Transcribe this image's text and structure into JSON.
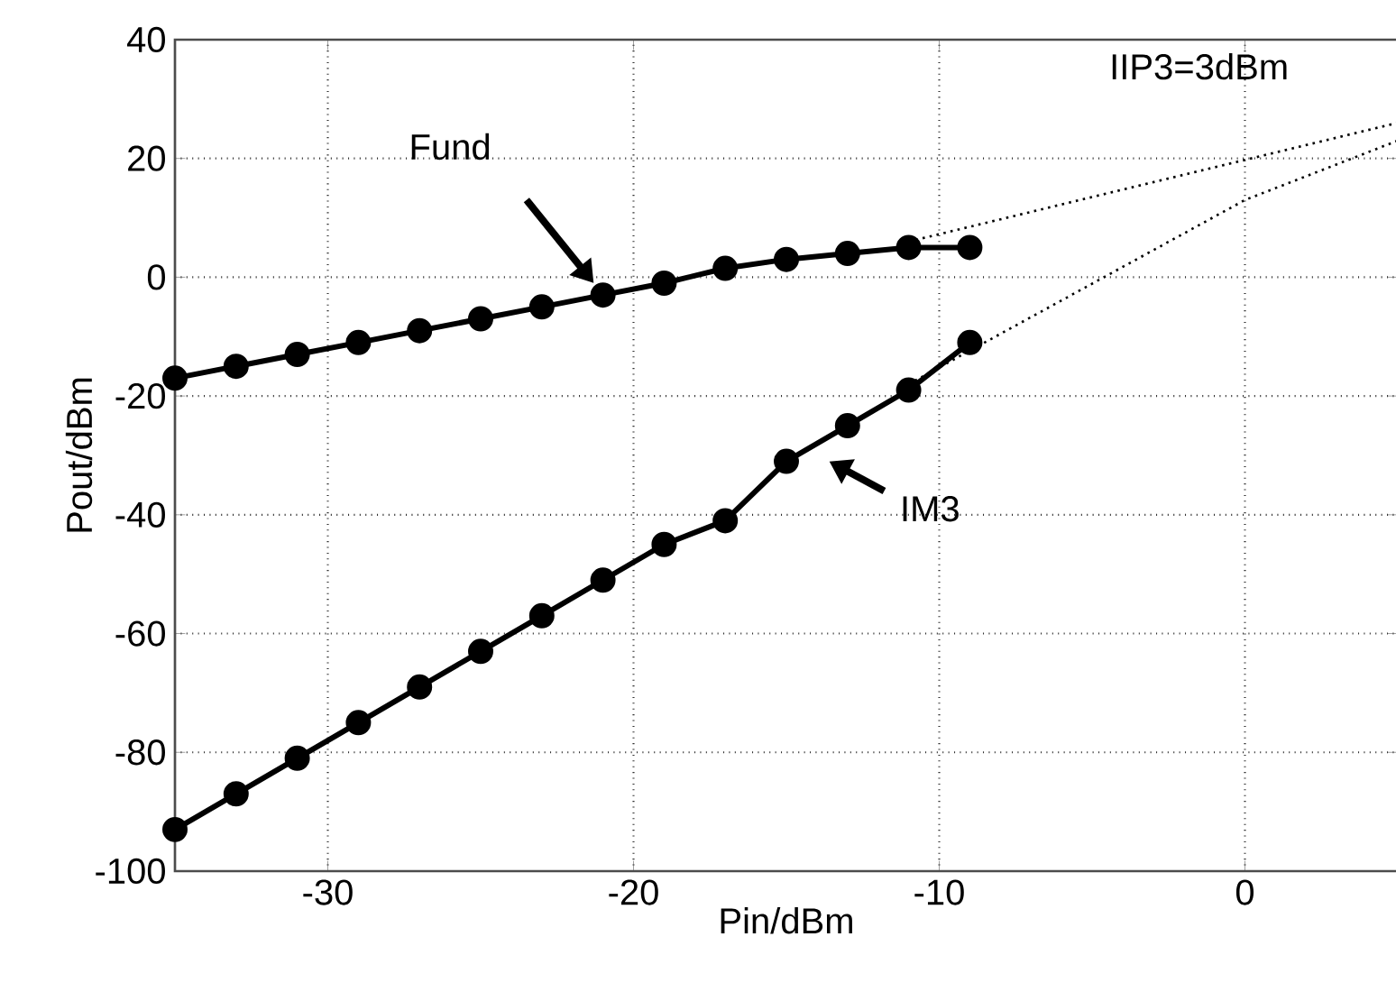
{
  "chart_data": {
    "type": "line",
    "xlabel": "Pin/dBm",
    "ylabel": "Pout/dBm",
    "xlim": [
      -35,
      5
    ],
    "xticks": [
      -30,
      -20,
      -10,
      0
    ],
    "ylim": [
      -100,
      40
    ],
    "yticks": [
      -100,
      -80,
      -60,
      -40,
      -20,
      0,
      20,
      40
    ],
    "grid": true,
    "marker": "circle",
    "line_style": "solid",
    "series": [
      {
        "color": "#000000",
        "x": [
          -35,
          -33,
          -31,
          -29,
          -27,
          -25,
          -23,
          -21,
          -19,
          -17,
          -15,
          -13,
          -11,
          -9
        ],
        "values": [
          -17,
          -15,
          -13,
          -11,
          -9,
          -7,
          -5,
          -3,
          -1,
          1.5,
          3,
          4,
          5,
          5
        ]
      },
      {
        "color": "#000000",
        "x": [
          -35,
          -33,
          -31,
          -29,
          -27,
          -25,
          -23,
          -21,
          -19,
          -17,
          -15,
          -13,
          -11,
          -9
        ],
        "values": [
          -93,
          -87,
          -81,
          -75,
          -69,
          -63,
          -57,
          -51,
          -45,
          -41,
          -31,
          -25,
          -19,
          -11
        ]
      },
      {
        "color": "#000000",
        "x": [
          -11,
          5
        ],
        "values": [
          6,
          26
        ],
        "marker": "none",
        "line_style": "dotted"
      },
      {
        "color": "#000000",
        "x": [
          -11,
          0,
          5
        ],
        "values": [
          -18,
          13,
          23
        ],
        "marker": "none",
        "line_style": "dotted"
      }
    ],
    "annotations": [
      "Fund",
      "IM3",
      "IIP3=3dBm"
    ]
  }
}
